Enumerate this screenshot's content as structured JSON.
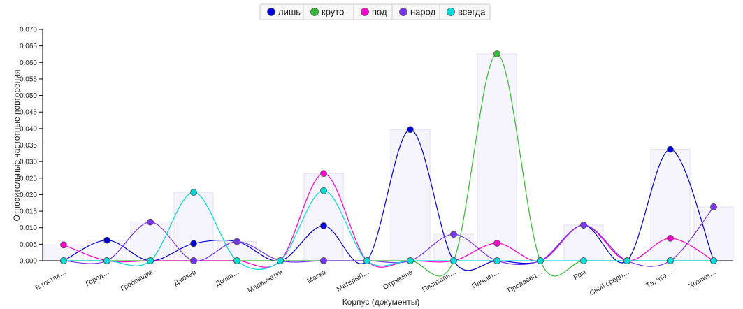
{
  "chart_data": {
    "type": "line",
    "xlabel": "Корпус (документы)",
    "ylabel": "Относительные частотные повторения",
    "ylim": [
      0,
      0.07
    ],
    "yticks": [
      "0.000",
      "0.005",
      "0.010",
      "0.015",
      "0.020",
      "0.025",
      "0.030",
      "0.035",
      "0.040",
      "0.045",
      "0.050",
      "0.055",
      "0.060",
      "0.065",
      "0.070"
    ],
    "categories": [
      "В гостях…",
      "Город…",
      "Гробовщик",
      "Джокер",
      "Дочка…",
      "Марионетки",
      "Маска",
      "Матерый…",
      "Отржение",
      "Писатель…",
      "Пляски…",
      "Продавец…",
      "Ром",
      "Свой среди…",
      "Та, что…",
      "Хозяин…"
    ],
    "series": [
      {
        "name": "лишь",
        "color": "#0000dd",
        "values": [
          0,
          0.0062,
          0,
          0.0052,
          0.0058,
          0,
          0.0106,
          0,
          0.0397,
          0,
          0,
          0,
          0.0108,
          0,
          0.0337,
          0
        ]
      },
      {
        "name": "круто",
        "color": "#33bb33",
        "values": [
          0,
          0,
          0,
          0,
          0,
          0,
          0,
          0,
          0,
          0,
          0.0626,
          0,
          0,
          0,
          0,
          0
        ]
      },
      {
        "name": "под",
        "color": "#ff00cc",
        "values": [
          0.0048,
          0,
          0,
          0,
          0,
          0,
          0.0264,
          0,
          0,
          0,
          0.0053,
          0,
          0.0108,
          0,
          0.0068,
          0
        ]
      },
      {
        "name": "народ",
        "color": "#7733ee",
        "values": [
          0,
          0,
          0.0117,
          0,
          0.0058,
          0,
          0,
          0,
          0,
          0.008,
          0,
          0,
          0.0108,
          0,
          0,
          0.0163
        ]
      },
      {
        "name": "всегда",
        "color": "#00dddd",
        "values": [
          0,
          0,
          0,
          0.0207,
          0,
          0,
          0.0212,
          0,
          0,
          0,
          0,
          0,
          0,
          0,
          0,
          0
        ]
      }
    ],
    "bar_values": [
      0.0048,
      0.0062,
      0.0117,
      0.0207,
      0.0058,
      0,
      0.0264,
      0,
      0.0397,
      0.008,
      0.0626,
      0,
      0.0108,
      0,
      0.0337,
      0.0163
    ],
    "legend_position": "top-center",
    "grid": false
  }
}
